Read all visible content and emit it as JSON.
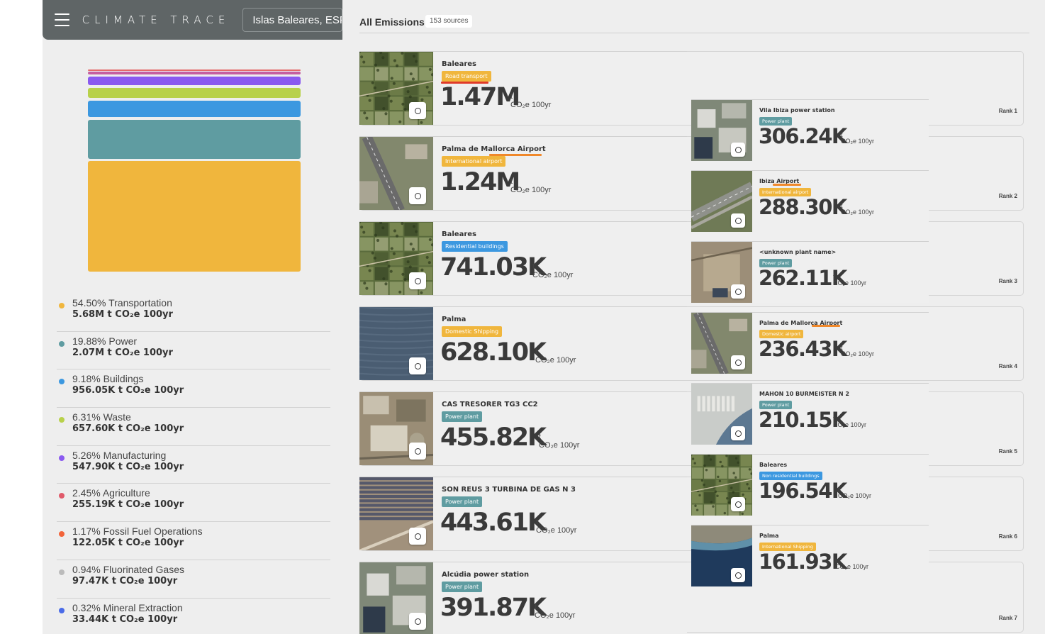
{
  "app": {
    "brand": "CLIMATE TRACE",
    "search_value": "Islas Baleares, ESP",
    "clear_symbol": "×"
  },
  "stack_colors": [
    "#e46a6a",
    "#c55fa0",
    "#8a5af0",
    "#b8d14a",
    "#3c98e0",
    "#5f9ca1",
    "#f0b63d"
  ],
  "legend": [
    {
      "line1": "54.50% Transportation",
      "line2": "5.68M t CO₂e 100yr",
      "color": "#f0b63d"
    },
    {
      "line1": "19.88% Power",
      "line2": "2.07M t CO₂e 100yr",
      "color": "#5f9ca1"
    },
    {
      "line1": "9.18% Buildings",
      "line2": "956.05K t CO₂e 100yr",
      "color": "#3c98e0"
    },
    {
      "line1": "6.31% Waste",
      "line2": "657.60K t CO₂e 100yr",
      "color": "#b8d14a"
    },
    {
      "line1": "5.26% Manufacturing",
      "line2": "547.90K t CO₂e 100yr",
      "color": "#8a5af0"
    },
    {
      "line1": "2.45% Agriculture",
      "line2": "255.19K t CO₂e 100yr",
      "color": "#e05a6a"
    },
    {
      "line1": "1.17% Fossil Fuel Operations",
      "line2": "122.05K t CO₂e 100yr",
      "color": "#f2643a"
    },
    {
      "line1": "0.94% Fluorinated Gases",
      "line2": "97.47K t CO₂e 100yr",
      "color": "#bbbbbb"
    },
    {
      "line1": "0.32% Mineral Extraction",
      "line2": "33.44K t CO₂e 100yr",
      "color": "#4a6be8"
    }
  ],
  "emissions": {
    "title": "All Emissions",
    "count_badge": "153 sources",
    "unit_top": "t",
    "unit_bottom": "CO₂e 100yr",
    "ranks": [
      "Rank 1",
      "Rank 2",
      "Rank 3",
      "Rank 4",
      "Rank 5",
      "Rank 6",
      "Rank 7"
    ],
    "left_cards": [
      {
        "name": "Baleares",
        "tag": "Road transport",
        "tag_color": "#f0b63d",
        "value": "1.47M",
        "thumb": "farmland"
      },
      {
        "name": "Palma de Mallorca Airport",
        "tag": "International airport",
        "tag_color": "#f0b63d",
        "value": "1.24M",
        "thumb": "airport"
      },
      {
        "name": "Baleares",
        "tag": "Residential buildings",
        "tag_color": "#3c98e0",
        "value": "741.03K",
        "thumb": "farmland"
      },
      {
        "name": "Palma",
        "tag": "Domestic Shipping",
        "tag_color": "#f0b63d",
        "value": "628.10K",
        "thumb": "sea"
      },
      {
        "name": "CAS TRESORER TG3 CC2",
        "tag": "Power plant",
        "tag_color": "#5f9ca1",
        "value": "455.82K",
        "thumb": "industrial"
      },
      {
        "name": "SON REUS 3 TURBINA DE GAS N 3",
        "tag": "Power plant",
        "tag_color": "#5f9ca1",
        "value": "443.61K",
        "thumb": "solar"
      },
      {
        "name": "Alcúdia power station",
        "tag": "Power plant",
        "tag_color": "#5f9ca1",
        "value": "391.87K",
        "thumb": "industrial2"
      }
    ],
    "right_cards": [
      {
        "name": "Vila Ibiza power station",
        "tag": "Power plant",
        "tag_color": "#5f9ca1",
        "value": "306.24K",
        "thumb": "industrial2"
      },
      {
        "name": "Ibiza Airport",
        "tag": "International airport",
        "tag_color": "#f0b63d",
        "value": "288.30K",
        "thumb": "runway"
      },
      {
        "name": "<unknown plant name>",
        "tag": "Power plant",
        "tag_color": "#5f9ca1",
        "value": "262.11K",
        "thumb": "construction"
      },
      {
        "name": "Palma de Mallorca Airport",
        "tag": "Domestic airport",
        "tag_color": "#f0b63d",
        "value": "236.43K",
        "thumb": "airport"
      },
      {
        "name": "MAHON 10 BURMEISTER N 2",
        "tag": "Power plant",
        "tag_color": "#5f9ca1",
        "value": "210.15K",
        "thumb": "harbor"
      },
      {
        "name": "Baleares",
        "tag": "Non residential buildings",
        "tag_color": "#3c98e0",
        "value": "196.54K",
        "thumb": "farmland"
      },
      {
        "name": "Palma",
        "tag": "International Shipping",
        "tag_color": "#f0b63d",
        "value": "161.93K",
        "thumb": "coast"
      }
    ]
  }
}
